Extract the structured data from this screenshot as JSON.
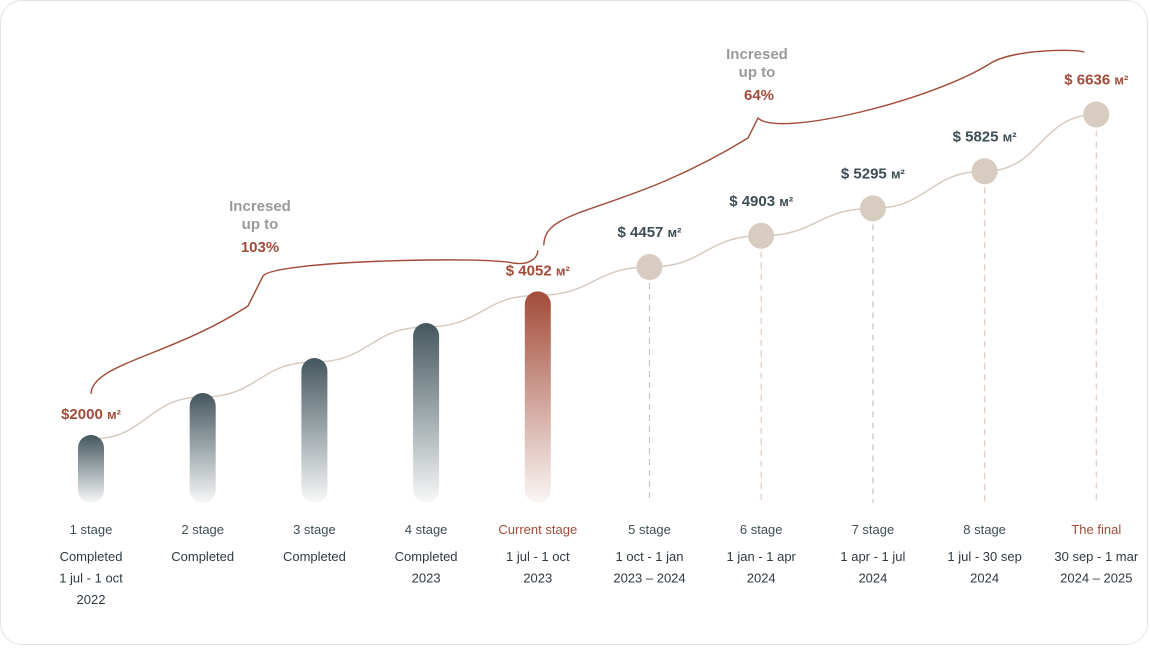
{
  "chart_data": {
    "type": "bar",
    "unit_suffix": "м²",
    "colors": {
      "completed": "#44575e",
      "current": "#a24b38",
      "future_dot": "#d8cbc0",
      "trend_line": "#d6cbc1",
      "accent_text": "#a24b38",
      "dark_text": "#3d4e55"
    },
    "stages": [
      {
        "label": "1 stage",
        "status": "completed",
        "price": "$2000",
        "value": 2000,
        "lines": [
          "Completed",
          "1 jul - 1 oct",
          "2022"
        ]
      },
      {
        "label": "2 stage",
        "status": "completed",
        "price": "",
        "value": 2600,
        "lines": [
          "Completed"
        ]
      },
      {
        "label": "3 stage",
        "status": "completed",
        "price": "",
        "value": 3100,
        "lines": [
          "Completed"
        ]
      },
      {
        "label": "4 stage",
        "status": "completed",
        "price": "",
        "value": 3600,
        "lines": [
          "Completed",
          "2023"
        ]
      },
      {
        "label": "Current stage",
        "status": "current",
        "price": "$ 4052",
        "value": 4052,
        "lines": [
          "1 jul - 1 oct",
          "2023"
        ]
      },
      {
        "label": "5 stage",
        "status": "future",
        "price": "$ 4457",
        "value": 4457,
        "lines": [
          "1 oct - 1 jan",
          "2023 – 2024"
        ]
      },
      {
        "label": "6 stage",
        "status": "future",
        "price": "$ 4903",
        "value": 4903,
        "lines": [
          "1 jan - 1 apr",
          "2024"
        ]
      },
      {
        "label": "7 stage",
        "status": "future",
        "price": "$ 5295",
        "value": 5295,
        "lines": [
          "1 apr - 1 jul",
          "2024"
        ]
      },
      {
        "label": "8 stage",
        "status": "future",
        "price": "$ 5825",
        "value": 5825,
        "lines": [
          "1 jul - 30 sep",
          "2024"
        ]
      },
      {
        "label": "The final",
        "status": "final",
        "price": "$ 6636",
        "value": 6636,
        "lines": [
          "30 sep - 1 mar",
          "2024 – 2025"
        ]
      }
    ],
    "annotations": [
      {
        "from_stage": 0,
        "to_stage": 4,
        "text1": "Incresed",
        "text2": "up to",
        "percent": "103%"
      },
      {
        "from_stage": 4,
        "to_stage": 9,
        "text1": "Incresed",
        "text2": "up to",
        "percent": "64%"
      }
    ]
  }
}
